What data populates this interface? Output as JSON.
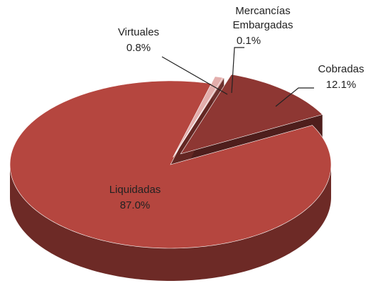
{
  "chart_data": {
    "type": "pie",
    "three_d": true,
    "categories": [
      "Liquidadas",
      "Virtuales",
      "Mercancías Embargadas",
      "Cobradas"
    ],
    "values": [
      87.0,
      0.8,
      0.1,
      12.1
    ],
    "value_labels": [
      "87.0%",
      "0.8%",
      "0.1%",
      "12.1%"
    ],
    "colors": [
      "#b5463f",
      "#e3aeac",
      "#c85a55",
      "#8e3733"
    ],
    "exploded": [
      false,
      true,
      true,
      true
    ]
  }
}
